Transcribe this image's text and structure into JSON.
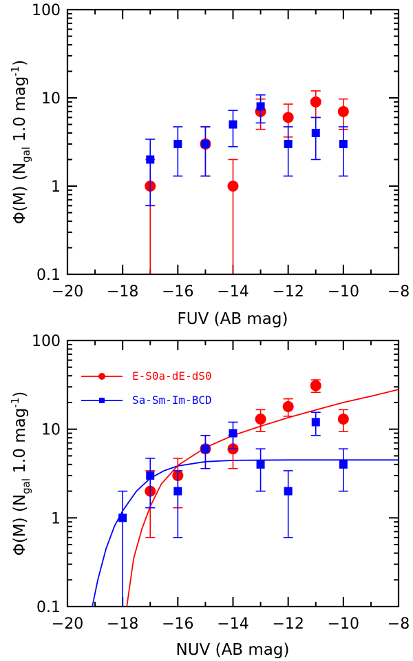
{
  "chart_data": [
    {
      "type": "scatter",
      "id": "fuv",
      "xlabel": "FUV (AB mag)",
      "ylabel": "Φ(M)  (N",
      "ylabel_sub": "gal",
      "ylabel_tail": "  1.0 mag",
      "ylabel_sup": "-1",
      "ylabel_close": ")",
      "xlim": [
        -20,
        -8
      ],
      "ylim": [
        0.1,
        100
      ],
      "yscale": "log",
      "xticks": [
        -20,
        -18,
        -16,
        -14,
        -12,
        -10,
        -8
      ],
      "xtick_labels": [
        "−20",
        "−18",
        "−16",
        "−14",
        "−12",
        "−10",
        "−8"
      ],
      "yticks": [
        0.1,
        1,
        10,
        100
      ],
      "ytick_labels": [
        "0.1",
        "1",
        "10",
        "100"
      ],
      "series": [
        {
          "name": "E-S0a-dE-dS0",
          "color": "#ff0000",
          "marker": "circle",
          "points": [
            {
              "x": -17,
              "y": 1,
              "lo": 0.1,
              "hi": 2
            },
            {
              "x": -15,
              "y": 3,
              "lo": 1.3,
              "hi": 4.7
            },
            {
              "x": -14,
              "y": 1,
              "lo": 0.1,
              "hi": 2
            },
            {
              "x": -13,
              "y": 7,
              "lo": 4.4,
              "hi": 9.7
            },
            {
              "x": -12,
              "y": 6,
              "lo": 3.6,
              "hi": 8.5
            },
            {
              "x": -11,
              "y": 9,
              "lo": 6,
              "hi": 12
            },
            {
              "x": -10,
              "y": 7,
              "lo": 4.4,
              "hi": 9.7
            }
          ]
        },
        {
          "name": "Sa-Sm-Im-BCD",
          "color": "#0000ff",
          "marker": "square",
          "points": [
            {
              "x": -17,
              "y": 2,
              "lo": 0.6,
              "hi": 3.4
            },
            {
              "x": -16,
              "y": 3,
              "lo": 1.3,
              "hi": 4.7
            },
            {
              "x": -15,
              "y": 3,
              "lo": 1.3,
              "hi": 4.7
            },
            {
              "x": -14,
              "y": 5,
              "lo": 2.8,
              "hi": 7.2
            },
            {
              "x": -13,
              "y": 8,
              "lo": 5.2,
              "hi": 10.8
            },
            {
              "x": -12,
              "y": 3,
              "lo": 1.3,
              "hi": 4.7
            },
            {
              "x": -11,
              "y": 4,
              "lo": 2,
              "hi": 6
            },
            {
              "x": -10,
              "y": 3,
              "lo": 1.3,
              "hi": 4.7
            }
          ]
        }
      ]
    },
    {
      "type": "scatter",
      "id": "nuv",
      "xlabel": "NUV (AB mag)",
      "ylabel": "Φ(M)  (N",
      "ylabel_sub": "gal",
      "ylabel_tail": "  1.0 mag",
      "ylabel_sup": "-1",
      "ylabel_close": ")",
      "xlim": [
        -20,
        -8
      ],
      "ylim": [
        0.1,
        100
      ],
      "yscale": "log",
      "xticks": [
        -20,
        -18,
        -16,
        -14,
        -12,
        -10,
        -8
      ],
      "xtick_labels": [
        "−20",
        "−18",
        "−16",
        "−14",
        "−12",
        "−10",
        "−8"
      ],
      "yticks": [
        0.1,
        1,
        10,
        100
      ],
      "ytick_labels": [
        "0.1",
        "1",
        "10",
        "100"
      ],
      "legend": [
        {
          "label": "E-S0a-dE-dS0",
          "color": "#ff0000",
          "marker": "circle"
        },
        {
          "label": "Sa-Sm-Im-BCD",
          "color": "#0000ff",
          "marker": "square"
        }
      ],
      "series": [
        {
          "name": "E-S0a-dE-dS0",
          "color": "#ff0000",
          "marker": "circle",
          "points": [
            {
              "x": -17,
              "y": 2,
              "lo": 0.6,
              "hi": 3.4
            },
            {
              "x": -16,
              "y": 3,
              "lo": 1.3,
              "hi": 4.7
            },
            {
              "x": -15,
              "y": 6,
              "lo": 3.6,
              "hi": 8.5
            },
            {
              "x": -14,
              "y": 6,
              "lo": 3.6,
              "hi": 8.5
            },
            {
              "x": -13,
              "y": 13,
              "lo": 9.4,
              "hi": 16.6
            },
            {
              "x": -12,
              "y": 18,
              "lo": 14,
              "hi": 22
            },
            {
              "x": -11,
              "y": 31,
              "lo": 26,
              "hi": 36
            },
            {
              "x": -10,
              "y": 13,
              "lo": 9.4,
              "hi": 16.6
            }
          ],
          "fit": [
            {
              "x": -17.85,
              "y": 0.1
            },
            {
              "x": -17.6,
              "y": 0.35
            },
            {
              "x": -17.3,
              "y": 0.75
            },
            {
              "x": -17,
              "y": 1.35
            },
            {
              "x": -16.6,
              "y": 2.4
            },
            {
              "x": -16,
              "y": 3.9
            },
            {
              "x": -15,
              "y": 6.2
            },
            {
              "x": -14,
              "y": 8.5
            },
            {
              "x": -13,
              "y": 10.8
            },
            {
              "x": -12,
              "y": 13.5
            },
            {
              "x": -11,
              "y": 16.5
            },
            {
              "x": -10,
              "y": 20
            },
            {
              "x": -9,
              "y": 23.5
            },
            {
              "x": -8,
              "y": 28
            }
          ]
        },
        {
          "name": "Sa-Sm-Im-BCD",
          "color": "#0000ff",
          "marker": "square",
          "points": [
            {
              "x": -18,
              "y": 1,
              "lo": 0.1,
              "hi": 2
            },
            {
              "x": -17,
              "y": 3,
              "lo": 1.3,
              "hi": 4.7
            },
            {
              "x": -16,
              "y": 2,
              "lo": 0.6,
              "hi": 3.4
            },
            {
              "x": -15,
              "y": 6,
              "lo": 3.6,
              "hi": 8.5
            },
            {
              "x": -14,
              "y": 9,
              "lo": 6,
              "hi": 12
            },
            {
              "x": -13,
              "y": 4,
              "lo": 2,
              "hi": 6
            },
            {
              "x": -12,
              "y": 2,
              "lo": 0.6,
              "hi": 3.4
            },
            {
              "x": -11,
              "y": 12,
              "lo": 8.5,
              "hi": 15.5
            },
            {
              "x": -10,
              "y": 4,
              "lo": 2,
              "hi": 6
            }
          ],
          "fit": [
            {
              "x": -19.1,
              "y": 0.1
            },
            {
              "x": -18.9,
              "y": 0.2
            },
            {
              "x": -18.6,
              "y": 0.45
            },
            {
              "x": -18.3,
              "y": 0.8
            },
            {
              "x": -18,
              "y": 1.2
            },
            {
              "x": -17.5,
              "y": 2.0
            },
            {
              "x": -17,
              "y": 2.8
            },
            {
              "x": -16.5,
              "y": 3.4
            },
            {
              "x": -16,
              "y": 3.85
            },
            {
              "x": -15,
              "y": 4.3
            },
            {
              "x": -14,
              "y": 4.45
            },
            {
              "x": -12,
              "y": 4.5
            },
            {
              "x": -10,
              "y": 4.5
            },
            {
              "x": -8,
              "y": 4.5
            }
          ]
        }
      ]
    }
  ]
}
